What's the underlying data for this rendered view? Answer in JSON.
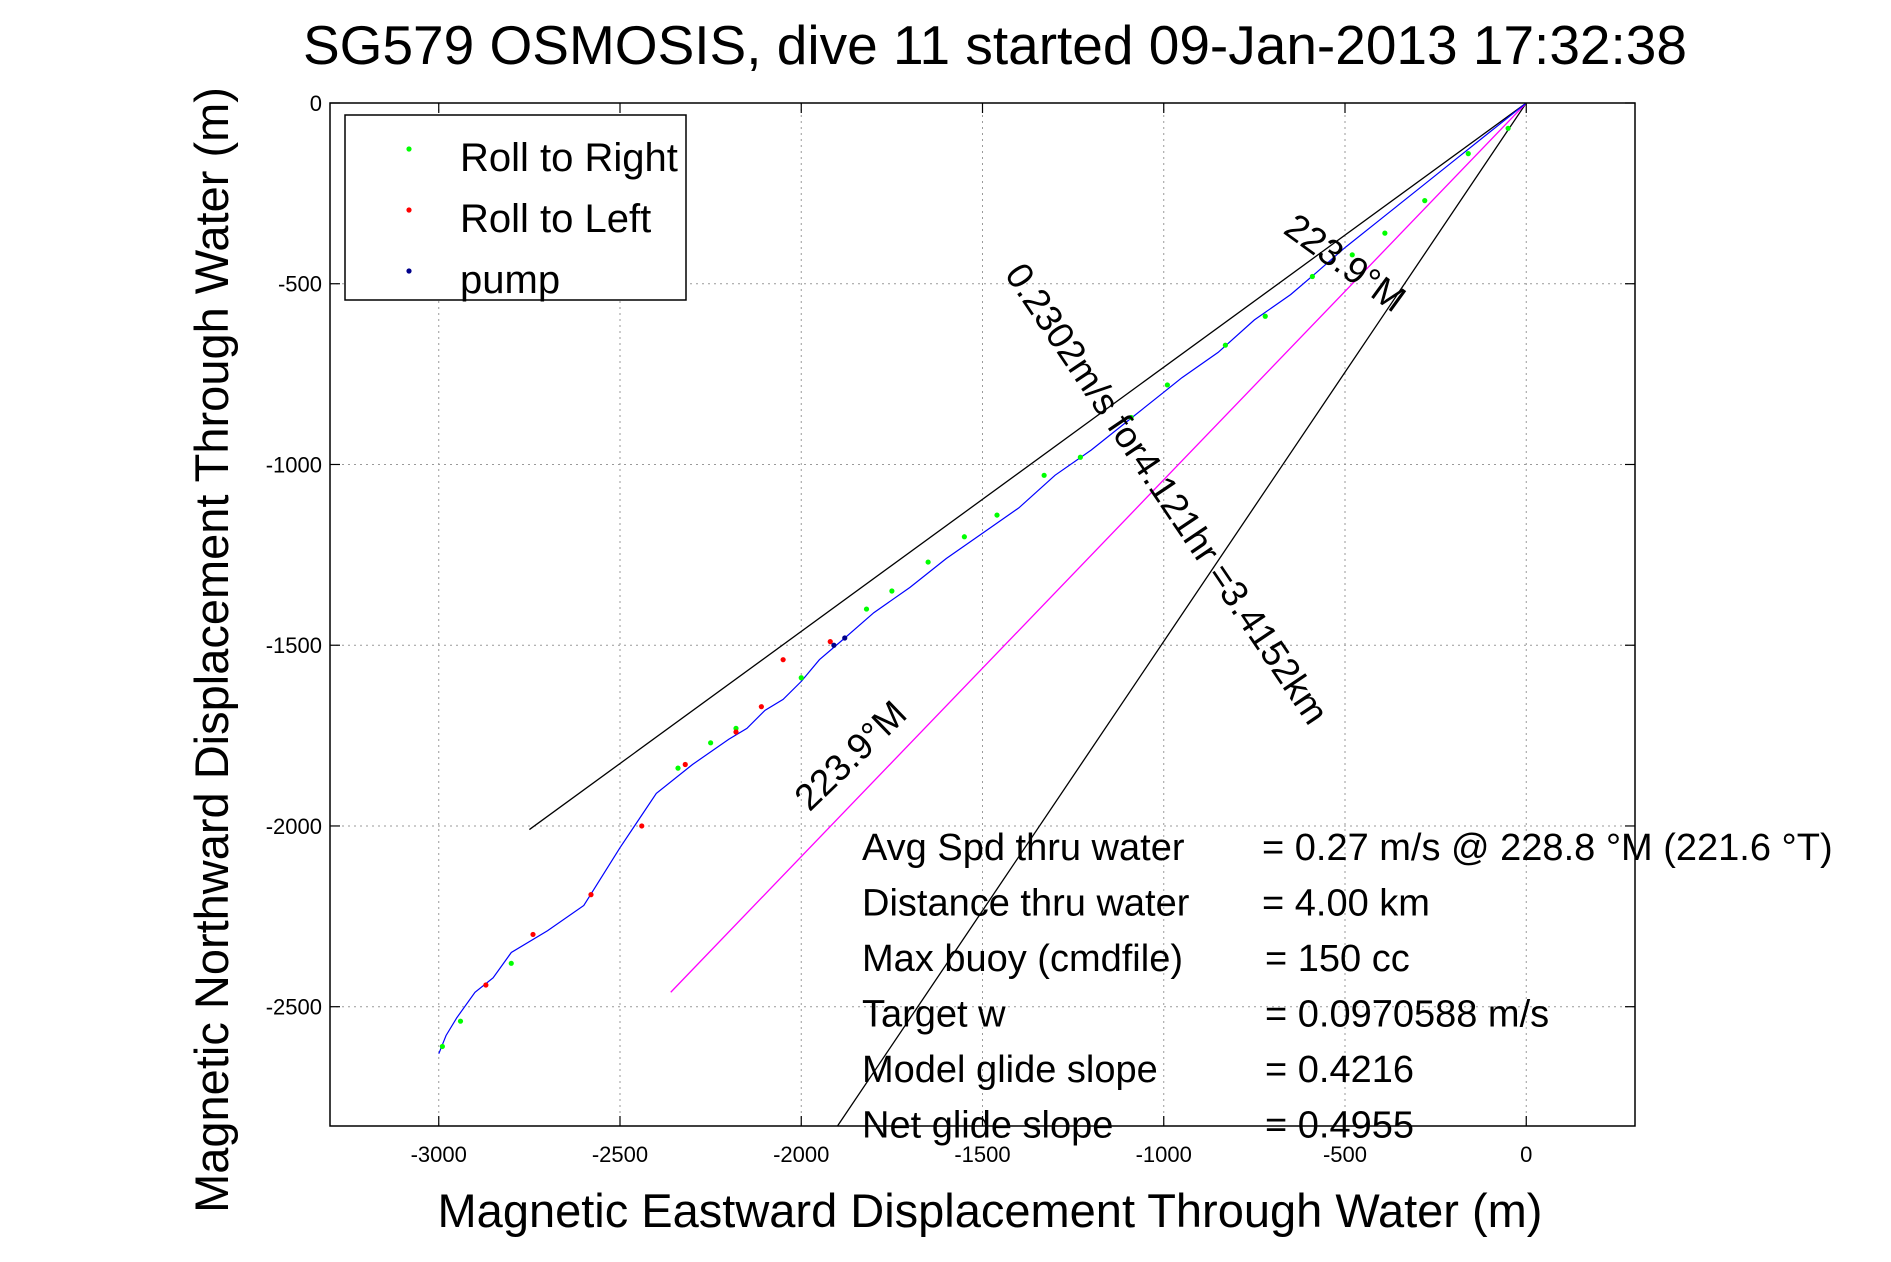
{
  "chart_data": {
    "type": "line",
    "title": "SG579 OSMOSIS, dive 11 started 09-Jan-2013 17:32:38",
    "xlabel": "Magnetic Eastward Displacement Through Water (m)",
    "ylabel": "Magnetic Northward Displacement Through Water (m)",
    "xlim": [
      -3300,
      300
    ],
    "ylim": [
      -2830,
      0
    ],
    "xticks": [
      -3000,
      -2500,
      -2000,
      -1500,
      -1000,
      -500,
      0
    ],
    "yticks": [
      0,
      -500,
      -1000,
      -1500,
      -2000,
      -2500
    ],
    "xtick_labels": [
      "-3000",
      "-2500",
      "-2000",
      "-1500",
      "-1000",
      "-500",
      "0"
    ],
    "ytick_labels": [
      "0",
      "-500",
      "-1000",
      "-1500",
      "-2000",
      "-2500"
    ],
    "grid": true,
    "legend_position": "top-left",
    "legend": [
      {
        "label": "Roll to Right",
        "color": "#00ff00"
      },
      {
        "label": "Roll to Left",
        "color": "#ff0000"
      },
      {
        "label": "pump",
        "color": "#00008b"
      }
    ],
    "track": {
      "color": "#0000ff",
      "x": [
        0,
        -100,
        -200,
        -300,
        -400,
        -500,
        -580,
        -650,
        -750,
        -850,
        -950,
        -1000,
        -1100,
        -1200,
        -1300,
        -1400,
        -1500,
        -1600,
        -1700,
        -1800,
        -1880,
        -1950,
        -2000,
        -2050,
        -2100,
        -2150,
        -2200,
        -2300,
        -2400,
        -2500,
        -2600,
        -2700,
        -2800,
        -2850,
        -2900,
        -2950,
        -2980,
        -3000
      ],
      "y": [
        0,
        -80,
        -160,
        -240,
        -320,
        -400,
        -470,
        -530,
        -600,
        -690,
        -760,
        -800,
        -880,
        -960,
        -1030,
        -1120,
        -1190,
        -1260,
        -1340,
        -1410,
        -1480,
        -1540,
        -1600,
        -1650,
        -1680,
        -1730,
        -1760,
        -1830,
        -1910,
        -2060,
        -2220,
        -2290,
        -2350,
        -2420,
        -2460,
        -2530,
        -2580,
        -2630
      ]
    },
    "roll_right_x": [
      -50,
      -160,
      -280,
      -390,
      -480,
      -590,
      -720,
      -830,
      -990,
      -1090,
      -1230,
      -1330,
      -1460,
      -1550,
      -1650,
      -1750,
      -1820,
      -2000,
      -2180,
      -2250,
      -2340,
      -2800,
      -2940,
      -2990
    ],
    "roll_right_y": [
      -70,
      -140,
      -270,
      -360,
      -420,
      -480,
      -590,
      -670,
      -780,
      -870,
      -980,
      -1030,
      -1140,
      -1200,
      -1270,
      -1350,
      -1400,
      -1590,
      -1730,
      -1770,
      -1840,
      -2380,
      -2540,
      -2610
    ],
    "roll_left_x": [
      -1920,
      -2050,
      -2110,
      -2180,
      -2320,
      -2440,
      -2580,
      -2740,
      -2870
    ],
    "roll_left_y": [
      -1490,
      -1540,
      -1670,
      -1740,
      -1830,
      -2000,
      -2190,
      -2300,
      -2440
    ],
    "pump_x": [
      -1880,
      -1910
    ],
    "pump_y": [
      -1480,
      -1500
    ],
    "reference_lines": [
      {
        "color": "#000000",
        "x": [
          0,
          -2750
        ],
        "y": [
          0,
          -2010
        ]
      },
      {
        "color": "#000000",
        "x": [
          0,
          -1900
        ],
        "y": [
          0,
          -2830
        ]
      },
      {
        "color": "#ff00ff",
        "x": [
          0,
          -2360
        ],
        "y": [
          0,
          -2460
        ]
      }
    ],
    "annotations": [
      {
        "text": "223.9°M",
        "x": -520,
        "y": -470,
        "angle": 36
      },
      {
        "text": "0.2302m/s for4.121hr =3.4152km",
        "x": -1020,
        "y": -1100,
        "angle": 56
      },
      {
        "text": "223.9°M",
        "x": -1840,
        "y": -1830,
        "angle": -44
      }
    ],
    "stats": [
      {
        "label": "Avg Spd thru water",
        "value": "=  0.27 m/s @ 228.8 °M (221.6 °T)"
      },
      {
        "label": "Distance thru water",
        "value": "=  4.00 km"
      },
      {
        "label": "Max buoy (cmdfile)",
        "value": "= 150 cc"
      },
      {
        "label": "Target w",
        "value": "= 0.0970588 m/s"
      },
      {
        "label": "Model glide slope",
        "value": "= 0.4216"
      },
      {
        "label": "Net glide slope",
        "value": "= 0.4955"
      }
    ]
  }
}
